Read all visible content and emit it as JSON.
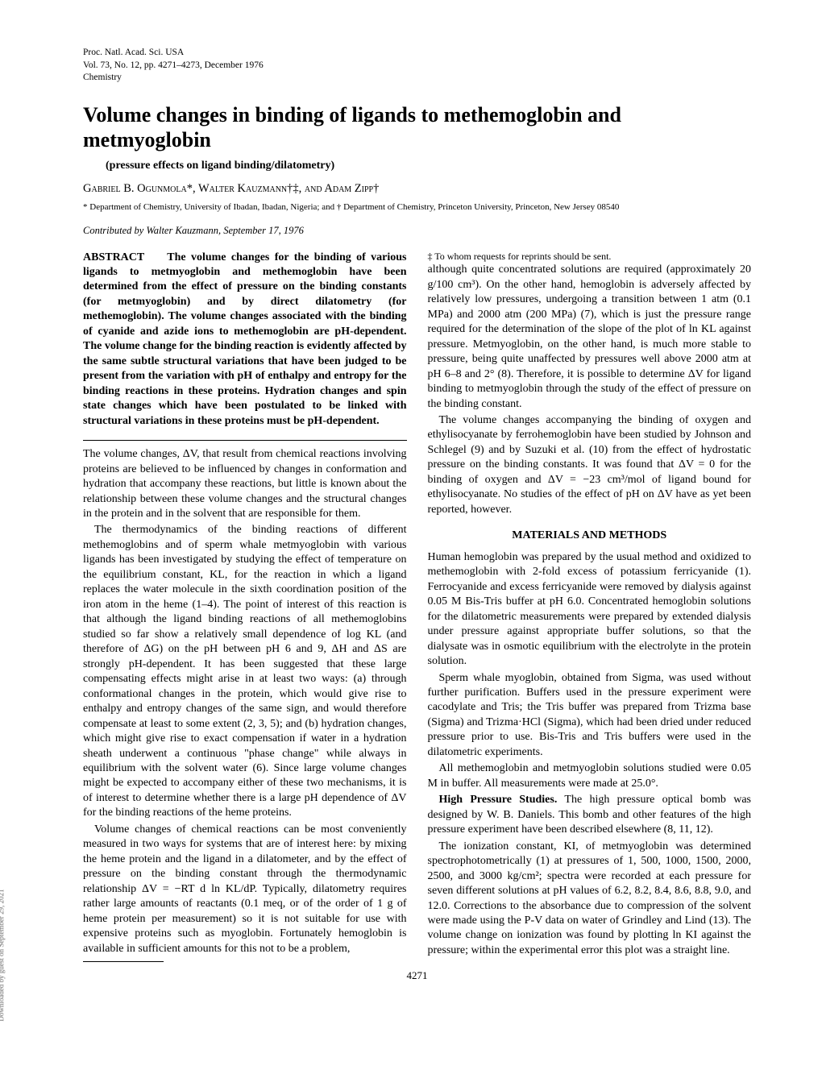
{
  "journal": {
    "line1": "Proc. Natl. Acad. Sci. USA",
    "line2": "Vol. 73, No. 12, pp. 4271–4273, December 1976",
    "line3": "Chemistry"
  },
  "title": "Volume changes in binding of ligands to methemoglobin and metmyoglobin",
  "subtitle": "(pressure effects on ligand binding/dilatometry)",
  "authors": "Gabriel B. Ogunmola*, Walter Kauzmann†‡, and Adam Zipp†",
  "affiliations": "* Department of Chemistry, University of Ibadan, Ibadan, Nigeria; and † Department of Chemistry, Princeton University, Princeton, New Jersey 08540",
  "contributed": "Contributed by Walter Kauzmann, September 17, 1976",
  "abstract": {
    "label": "ABSTRACT",
    "body": "The volume changes for the binding of various ligands to metmyoglobin and methemoglobin have been determined from the effect of pressure on the binding constants (for metmyoglobin) and by direct dilatometry (for methemoglobin). The volume changes associated with the binding of cyanide and azide ions to methemoglobin are pH-dependent. The volume change for the binding reaction is evidently affected by the same subtle structural variations that have been judged to be present from the variation with pH of enthalpy and entropy for the binding reactions in these proteins. Hydration changes and spin state changes which have been postulated to be linked with structural variations in these proteins must be pH-dependent."
  },
  "body": {
    "p1": "The volume changes, ΔV, that result from chemical reactions involving proteins are believed to be influenced by changes in conformation and hydration that accompany these reactions, but little is known about the relationship between these volume changes and the structural changes in the protein and in the solvent that are responsible for them.",
    "p2": "The thermodynamics of the binding reactions of different methemoglobins and of sperm whale metmyoglobin with various ligands has been investigated by studying the effect of temperature on the equilibrium constant, KL, for the reaction in which a ligand replaces the water molecule in the sixth coordination position of the iron atom in the heme (1–4). The point of interest of this reaction is that although the ligand binding reactions of all methemoglobins studied so far show a relatively small dependence of log KL (and therefore of ΔG) on the pH between pH 6 and 9, ΔH and ΔS are strongly pH-dependent. It has been suggested that these large compensating effects might arise in at least two ways: (a) through conformational changes in the protein, which would give rise to enthalpy and entropy changes of the same sign, and would therefore compensate at least to some extent (2, 3, 5); and (b) hydration changes, which might give rise to exact compensation if water in a hydration sheath underwent a continuous \"phase change\" while always in equilibrium with the solvent water (6). Since large volume changes might be expected to accompany either of these two mechanisms, it is of interest to determine whether there is a large pH dependence of ΔV for the binding reactions of the heme proteins.",
    "p3": "Volume changes of chemical reactions can be most conveniently measured in two ways for systems that are of interest here: by mixing the heme protein and the ligand in a dilatometer, and by the effect of pressure on the binding constant through the thermodynamic relationship ΔV = −RT d ln KL/dP. Typically, dilatometry requires rather large amounts of reactants (0.1 meq, or of the order of 1 g of heme protein per measurement) so it is not suitable for use with expensive proteins such as myoglobin. Fortunately hemoglobin is available in sufficient amounts for this not to be a problem,",
    "p4": "although quite concentrated solutions are required (approximately 20 g/100 cm³). On the other hand, hemoglobin is adversely affected by relatively low pressures, undergoing a transition between 1 atm (0.1 MPa) and 2000 atm (200 MPa) (7), which is just the pressure range required for the determination of the slope of the plot of ln KL against pressure. Metmyoglobin, on the other hand, is much more stable to pressure, being quite unaffected by pressures well above 2000 atm at pH 6–8 and 2° (8). Therefore, it is possible to determine ΔV for ligand binding to metmyoglobin through the study of the effect of pressure on the binding constant.",
    "p5": "The volume changes accompanying the binding of oxygen and ethylisocyanate by ferrohemoglobin have been studied by Johnson and Schlegel (9) and by Suzuki et al. (10) from the effect of hydrostatic pressure on the binding constants. It was found that ΔV = 0 for the binding of oxygen and ΔV = −23 cm³/mol of ligand bound for ethylisocyanate. No studies of the effect of pH on ΔV have as yet been reported, however."
  },
  "section_heading": "MATERIALS AND METHODS",
  "methods": {
    "m1": "Human hemoglobin was prepared by the usual method and oxidized to methemoglobin with 2-fold excess of potassium ferricyanide (1). Ferrocyanide and excess ferricyanide were removed by dialysis against 0.05 M Bis-Tris buffer at pH 6.0. Concentrated hemoglobin solutions for the dilatometric measurements were prepared by extended dialysis under pressure against appropriate buffer solutions, so that the dialysate was in osmotic equilibrium with the electrolyte in the protein solution.",
    "m2": "Sperm whale myoglobin, obtained from Sigma, was used without further purification. Buffers used in the pressure experiment were cacodylate and Tris; the Tris buffer was prepared from Trizma base (Sigma) and Trizma·HCl (Sigma), which had been dried under reduced pressure prior to use. Bis-Tris and Tris buffers were used in the dilatometric experiments.",
    "m3": "All methemoglobin and metmyoglobin solutions studied were 0.05 M in buffer. All measurements were made at 25.0°.",
    "m4a": "High Pressure Studies.",
    "m4b": " The high pressure optical bomb was designed by W. B. Daniels. This bomb and other features of the high pressure experiment have been described elsewhere (8, 11, 12).",
    "m5": "The ionization constant, KI, of metmyoglobin was determined spectrophotometrically (1) at pressures of 1, 500, 1000, 1500, 2000, 2500, and 3000 kg/cm²; spectra were recorded at each pressure for seven different solutions at pH values of 6.2, 8.2, 8.4, 8.6, 8.8, 9.0, and 12.0. Corrections to the absorbance due to compression of the solvent were made using the P-V data on water of Grindley and Lind (13). The volume change on ionization was found by plotting ln KI against the pressure; within the experimental error this plot was a straight line."
  },
  "footnote": "‡ To whom requests for reprints should be sent.",
  "page_number": "4271",
  "side_text": "Downloaded by guest on September 29, 2021"
}
